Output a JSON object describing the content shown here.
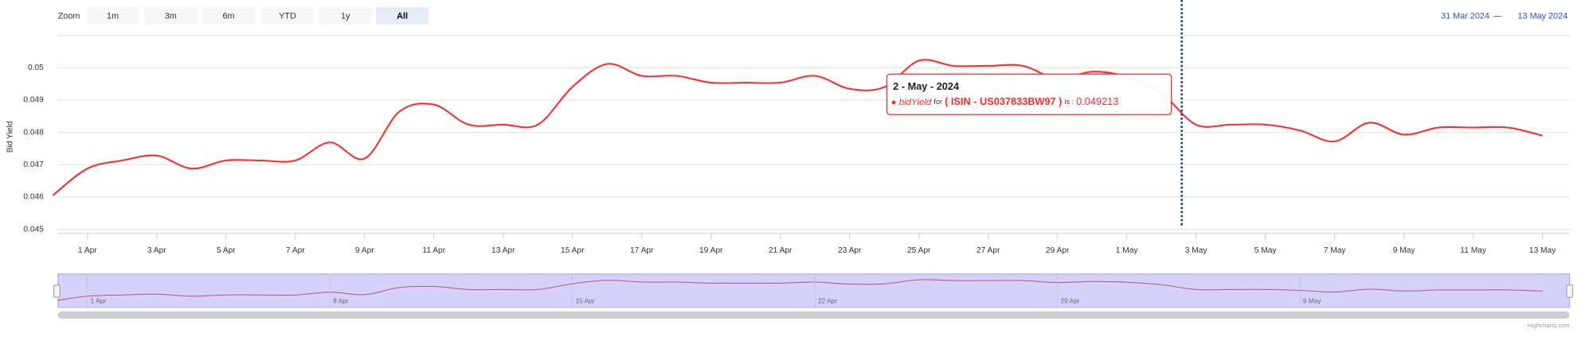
{
  "range_selector": {
    "zoom_label": "Zoom",
    "buttons": [
      "1m",
      "3m",
      "6m",
      "YTD",
      "1y",
      "All"
    ],
    "selected": 5,
    "from": "31 Mar 2024",
    "separator": "—",
    "to": "13 May 2024"
  },
  "chart_data": {
    "type": "line",
    "y_axis_label": "Bid Yield",
    "categories": [
      null,
      "1 Apr",
      null,
      "3 Apr",
      null,
      "5 Apr",
      null,
      "7 Apr",
      null,
      "9 Apr",
      null,
      "11 Apr",
      null,
      "13 Apr",
      null,
      "15 Apr",
      null,
      "17 Apr",
      null,
      "19 Apr",
      null,
      "21 Apr",
      null,
      "23 Apr",
      null,
      "25 Apr",
      null,
      "27 Apr",
      null,
      "29 Apr",
      null,
      "1 May",
      null,
      "3 May",
      null,
      "5 May",
      null,
      "7 May",
      null,
      "9 May",
      null,
      "11 May",
      null,
      "13 May"
    ],
    "series": [
      {
        "name": "bidYield",
        "color": "#ff2a2a",
        "values": [
          0.04605,
          0.04688,
          0.04713,
          0.04728,
          0.04688,
          0.04713,
          0.04713,
          0.04713,
          0.04769,
          0.04719,
          0.04864,
          0.04886,
          0.04824,
          0.04824,
          0.04824,
          0.04941,
          0.05012,
          0.04975,
          0.04975,
          0.04954,
          0.04954,
          0.04954,
          0.04975,
          0.04935,
          0.0494,
          0.05022,
          0.05006,
          0.05006,
          0.05006,
          0.04966,
          0.04988,
          0.04972,
          0.049213,
          0.04824,
          0.04824,
          0.04824,
          0.04806,
          0.04772,
          0.0483,
          0.04793,
          0.04815,
          0.04815,
          0.04815,
          0.0479
        ]
      }
    ],
    "ylim": [
      0.045,
      0.051
    ],
    "yticks": [
      0.045,
      0.046,
      0.047,
      0.048,
      0.049,
      0.05
    ],
    "grid": true,
    "tooltip": {
      "index": 32,
      "date": "2 - May - 2024",
      "bullet": "●",
      "series_name": "bidYield",
      "for_text": "for",
      "isin": "( ISIN - US037833BW97 )",
      "is_text": "is :"
    },
    "navigator": {
      "labels": [
        "1 Apr",
        "8 Apr",
        "15 Apr",
        "22 Apr",
        "29 Apr",
        "6 May"
      ],
      "label_indices": [
        1,
        8,
        15,
        22,
        29,
        36
      ]
    },
    "credits": "Highcharts.com"
  }
}
